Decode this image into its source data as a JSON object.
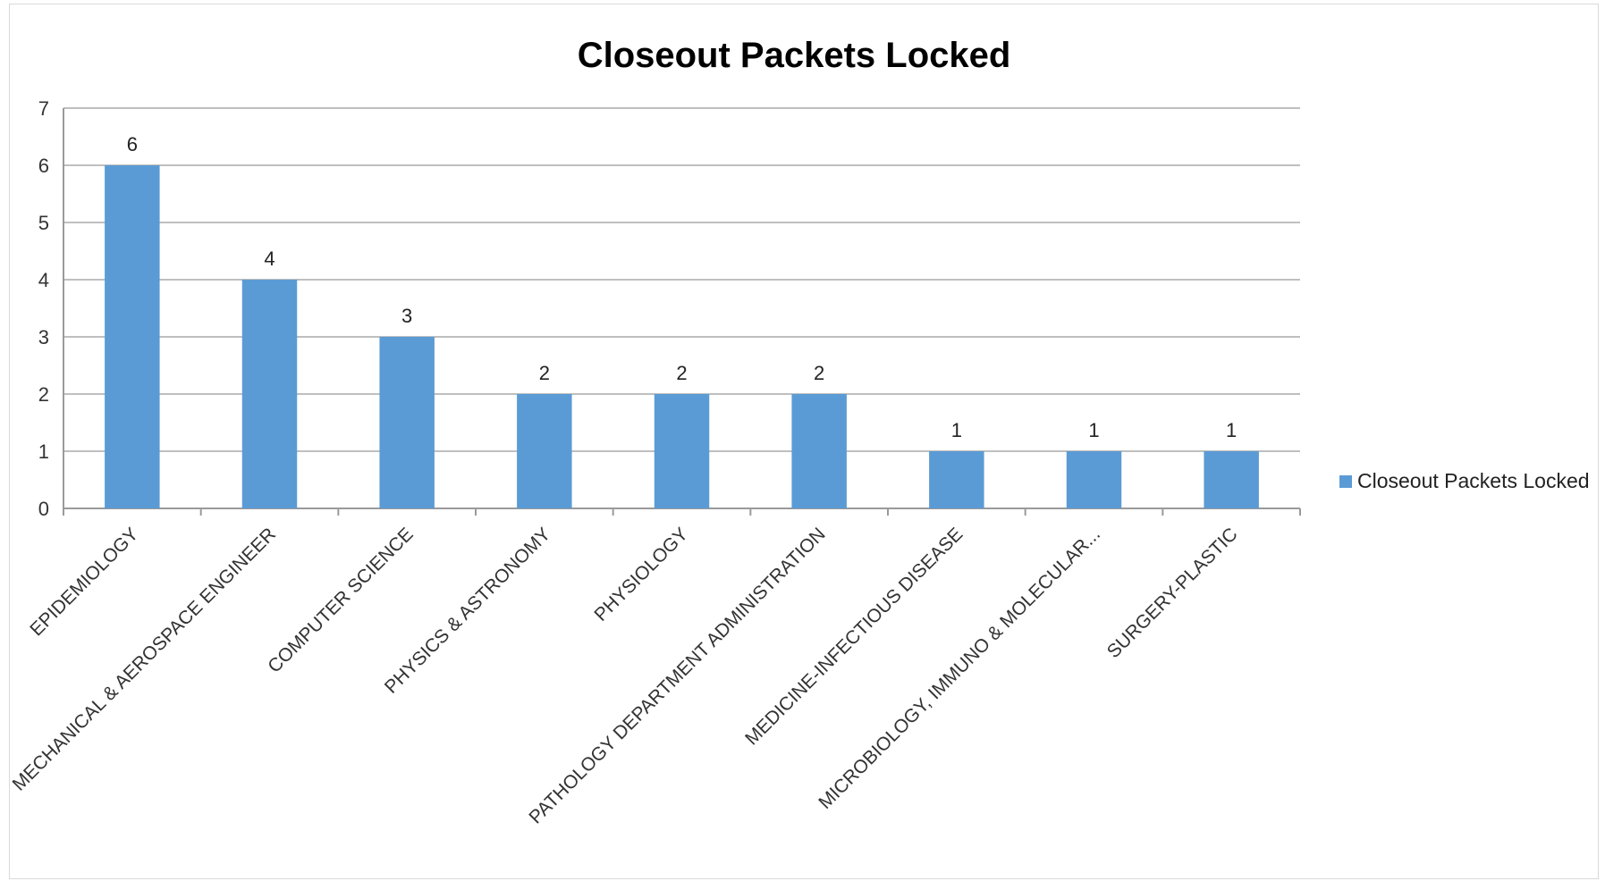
{
  "chart_data": {
    "type": "bar",
    "title": "Closeout Packets Locked",
    "categories": [
      "EPIDEMIOLOGY",
      "MECHANICAL & AEROSPACE ENGINEER",
      "COMPUTER SCIENCE",
      "PHYSICS & ASTRONOMY",
      "PHYSIOLOGY",
      "PATHOLOGY DEPARTMENT ADMINISTRATION",
      "MEDICINE-INFECTIOUS DISEASE",
      "MICROBIOLOGY, IMMUNO & MOLECULAR...",
      "SURGERY-PLASTIC"
    ],
    "series": [
      {
        "name": "Closeout Packets Locked",
        "values": [
          6,
          4,
          3,
          2,
          2,
          2,
          1,
          1,
          1
        ]
      }
    ],
    "ylim": [
      0,
      7
    ],
    "yticks": [
      0,
      1,
      2,
      3,
      4,
      5,
      6,
      7
    ],
    "grid": true,
    "legend_position": "right",
    "data_labels": true,
    "bar_color": "#5b9bd5"
  }
}
